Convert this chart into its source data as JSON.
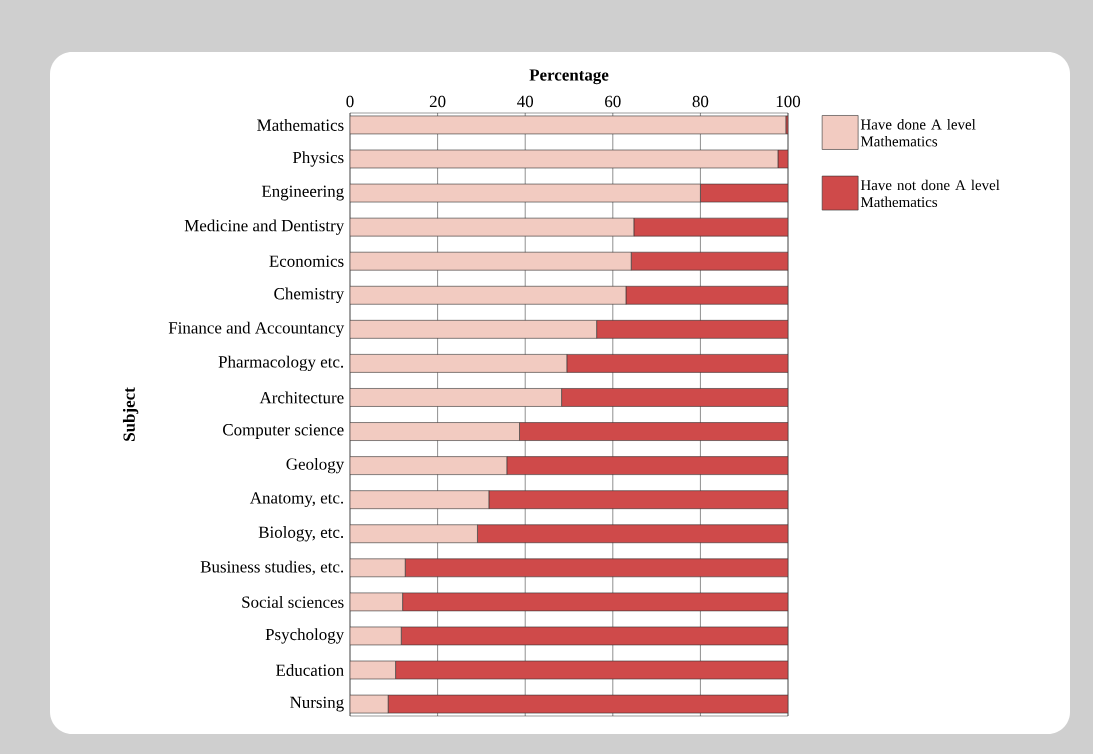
{
  "chart_data": {
    "type": "bar",
    "orientation": "horizontal",
    "stacked": true,
    "xlabel": "Percentage",
    "ylabel": "Subject",
    "categories": [
      "Mathematics",
      "Physics",
      "Engineering",
      "Medicine and Dentistry",
      "Economics",
      "Chemistry",
      "Finance and Accountancy",
      "Pharmacology etc.",
      "Architecture",
      "Computer science",
      "Geology",
      "Anatomy, etc.",
      "Biology, etc.",
      "Business studies, etc.",
      "Social sciences",
      "Psychology",
      "Education",
      "Nursing"
    ],
    "series": [
      {
        "name": "Have done A level Mathematics",
        "color": "#f2cbc1",
        "values": [
          99.5,
          97.7,
          80.0,
          64.8,
          64.2,
          63.0,
          56.3,
          49.5,
          48.3,
          38.7,
          35.8,
          31.7,
          29.1,
          12.6,
          12.0,
          11.7,
          10.4,
          8.7
        ]
      },
      {
        "name": "Have not done A level Mathematics",
        "color": "#cf4a4a",
        "values": [
          0.5,
          2.3,
          20.0,
          35.2,
          35.8,
          37.0,
          43.7,
          50.5,
          51.7,
          61.3,
          64.2,
          68.3,
          70.9,
          87.4,
          88.0,
          88.3,
          89.6,
          91.3
        ]
      }
    ],
    "xlim": [
      0,
      100
    ],
    "xticks": [
      0,
      20,
      40,
      60,
      80,
      100
    ],
    "grid": "x",
    "legend": "right"
  }
}
